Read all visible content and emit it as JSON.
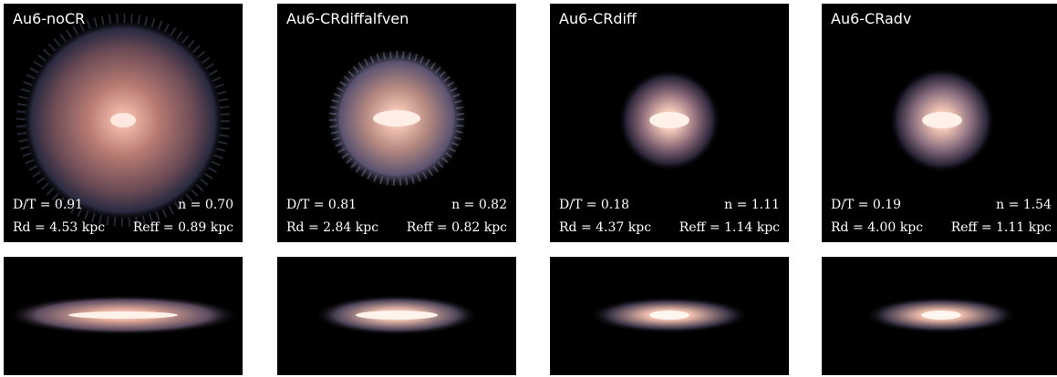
{
  "panels": [
    {
      "title": "Au6-noCR",
      "dt": "D/T = 0.91",
      "n": "n = 0.70",
      "rd": "Rd = 4.53 kpc",
      "reff": "Reff = 0.89 kpc"
    },
    {
      "title": "Au6-CRdiffalfven",
      "dt": "D/T = 0.81",
      "n": "n = 0.82",
      "rd": "Rd = 2.84 kpc",
      "reff": "Reff = 0.82 kpc"
    },
    {
      "title": "Au6-CRdiff",
      "dt": "D/T = 0.18",
      "n": "n = 1.11",
      "rd": "Rd = 4.37 kpc",
      "reff": "Reff = 1.14 kpc"
    },
    {
      "title": "Au6-CRadv",
      "dt": "D/T = 0.19",
      "n": "n = 1.54",
      "rd": "Rd = 4.00 kpc",
      "reff": "Reff = 1.11 kpc"
    }
  ]
}
